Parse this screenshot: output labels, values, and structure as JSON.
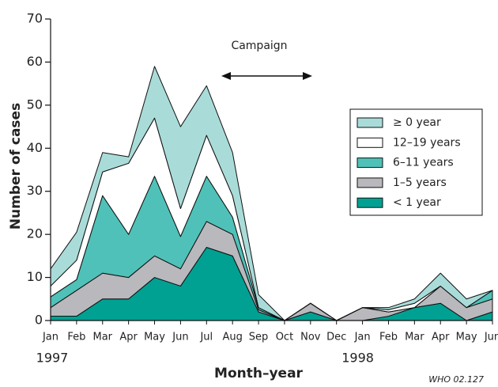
{
  "chart_data": {
    "type": "stacked_area",
    "annotation": "Campaign",
    "x_label": "Month–year",
    "y_label": "Number of cases",
    "credit": "WHO 02.127",
    "categories": [
      "Jan",
      "Feb",
      "Mar",
      "Apr",
      "May",
      "Jun",
      "Jul",
      "Aug",
      "Sep",
      "Oct",
      "Nov",
      "Dec",
      "Jan",
      "Feb",
      "Mar",
      "Apr",
      "May",
      "Jun"
    ],
    "year_labels": [
      "1997",
      "1998"
    ],
    "series": [
      {
        "name": "< 1 year",
        "color": "#00a192",
        "values": [
          1,
          1,
          5,
          5,
          10,
          8,
          17,
          15,
          2,
          0,
          2,
          0,
          0,
          1,
          3,
          4,
          0,
          2
        ]
      },
      {
        "name": "1–5 years",
        "color": "#b8b8bd",
        "values": [
          2,
          6,
          6,
          5,
          5,
          4,
          6,
          5,
          0.5,
          0,
          2,
          0,
          3,
          1,
          0,
          4,
          3,
          3
        ]
      },
      {
        "name": "6–11 years",
        "color": "#4fc1b8",
        "values": [
          2.5,
          2.5,
          18,
          10,
          18.5,
          7.5,
          10.5,
          4,
          0.5,
          0,
          0,
          0,
          0,
          0,
          0,
          0,
          0,
          2
        ]
      },
      {
        "name": "12–19 years",
        "color": "#ffffff",
        "values": [
          2.5,
          4.5,
          5.5,
          16.5,
          13.5,
          6.5,
          9.5,
          5,
          0,
          0,
          0,
          0,
          0,
          0.5,
          1,
          0,
          0,
          0
        ]
      },
      {
        "name": "≥ 0 year",
        "color": "#a9dcd9",
        "values": [
          4,
          6.5,
          4.5,
          1.5,
          12,
          19,
          11.5,
          10,
          3,
          0,
          0,
          0,
          0,
          0.5,
          1,
          3,
          2,
          0
        ]
      }
    ],
    "ylim": [
      0,
      70
    ],
    "yticks": [
      0,
      10,
      20,
      30,
      40,
      50,
      60,
      70
    ],
    "legend": "right"
  }
}
